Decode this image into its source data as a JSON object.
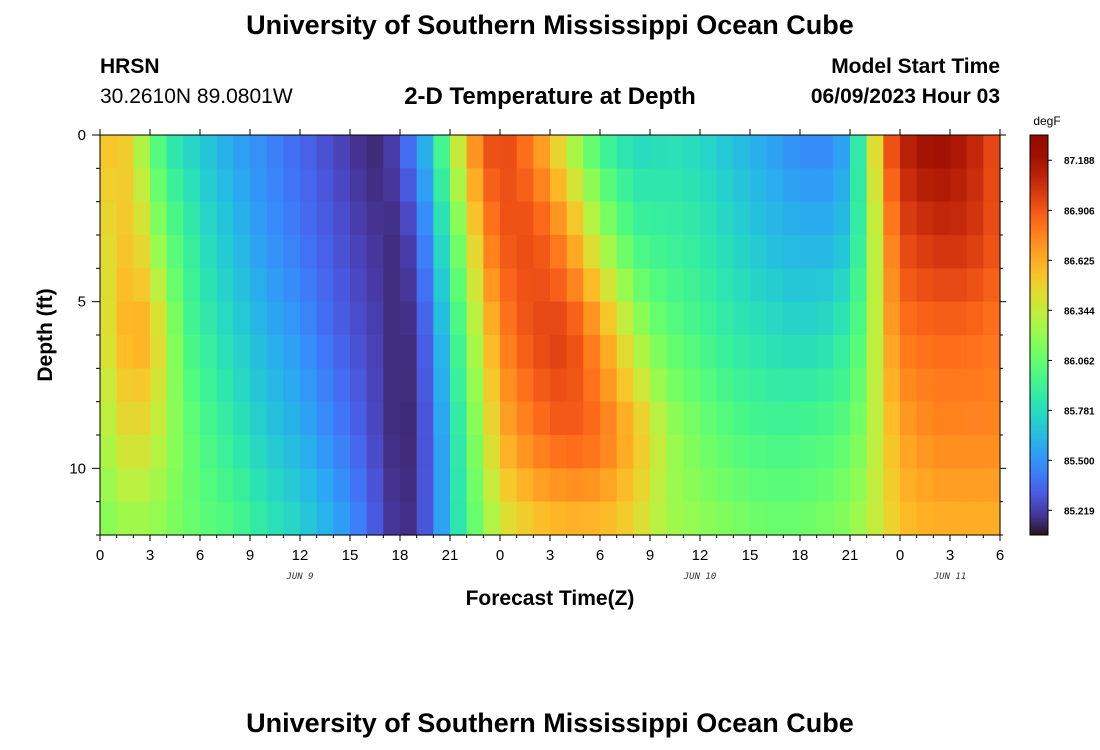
{
  "header": {
    "title": "University of Southern Mississippi Ocean Cube",
    "station": "HRSN",
    "coords": "30.2610N  89.0801W",
    "subtitle": "2-D Temperature at Depth",
    "model_start_label": "Model Start Time",
    "model_start_value": "06/09/2023 Hour 03"
  },
  "footer": {
    "title": "University of Southern Mississippi Ocean Cube"
  },
  "chart_data": {
    "type": "heatmap",
    "title": "2-D Temperature at Depth",
    "xlabel": "Forecast Time(Z)",
    "ylabel": "Depth (ft)",
    "x_unit": "hours since 06/09/2023 00Z",
    "xlim": [
      0,
      54
    ],
    "ylim": [
      0,
      12
    ],
    "y_inverted": true,
    "x_ticks": [
      0,
      3,
      6,
      9,
      12,
      15,
      18,
      21,
      24,
      27,
      30,
      33,
      36,
      39,
      42,
      45,
      48,
      51,
      54
    ],
    "x_tick_labels": [
      "0",
      "3",
      "6",
      "9",
      "12",
      "15",
      "18",
      "21",
      "0",
      "3",
      "6",
      "9",
      "12",
      "15",
      "18",
      "21",
      "0",
      "3",
      "6"
    ],
    "y_ticks": [
      0,
      5,
      10
    ],
    "y_tick_labels": [
      "0",
      "5",
      "10"
    ],
    "day_labels": [
      {
        "text": "JUN 9",
        "x": 12
      },
      {
        "text": "JUN 10",
        "x": 36
      },
      {
        "text": "JUN 11",
        "x": 51
      }
    ],
    "colorbar": {
      "unit": "degF",
      "min": 85.08,
      "max": 87.33,
      "tick_labels": [
        "87.188",
        "86.906",
        "86.625",
        "86.344",
        "86.062",
        "85.781",
        "85.500",
        "85.219"
      ],
      "tick_values": [
        87.188,
        86.906,
        86.625,
        86.344,
        86.062,
        85.781,
        85.5,
        85.219
      ],
      "colormap": "turbo"
    },
    "grid": {
      "time_step_hours": 1,
      "depth_step_ft": 1,
      "depth_levels": 12,
      "profile_depths_ft": [
        0,
        3,
        6,
        9,
        12
      ],
      "profile_times_hours": [
        0,
        1,
        2,
        3,
        4,
        5,
        6,
        8,
        10,
        12,
        14,
        16,
        17,
        18,
        19,
        20,
        21,
        22,
        23,
        24,
        26,
        28,
        30,
        32,
        33,
        34,
        36,
        38,
        40,
        42,
        44,
        45,
        46,
        47,
        48,
        50,
        52,
        54
      ],
      "profiles_degF": [
        [
          86.5,
          86.4,
          86.3,
          86.2,
          86.1
        ],
        [
          86.6,
          86.5,
          86.55,
          86.4,
          86.2
        ],
        [
          86.4,
          86.55,
          86.65,
          86.45,
          86.2
        ],
        [
          86.1,
          86.3,
          86.6,
          86.4,
          86.2
        ],
        [
          85.85,
          86.05,
          86.3,
          86.25,
          86.15
        ],
        [
          85.75,
          85.95,
          86.0,
          86.1,
          86.1
        ],
        [
          85.7,
          85.8,
          85.9,
          86.0,
          86.05
        ],
        [
          85.55,
          85.65,
          85.75,
          85.85,
          86.0
        ],
        [
          85.45,
          85.5,
          85.6,
          85.7,
          85.85
        ],
        [
          85.35,
          85.4,
          85.5,
          85.6,
          85.75
        ],
        [
          85.25,
          85.3,
          85.35,
          85.45,
          85.6
        ],
        [
          85.15,
          85.2,
          85.25,
          85.3,
          85.4
        ],
        [
          85.15,
          85.18,
          85.2,
          85.2,
          85.25
        ],
        [
          85.3,
          85.15,
          85.13,
          85.13,
          85.15
        ],
        [
          85.5,
          85.3,
          85.2,
          85.18,
          85.2
        ],
        [
          85.75,
          85.6,
          85.45,
          85.4,
          85.4
        ],
        [
          86.2,
          85.95,
          85.8,
          85.7,
          85.7
        ],
        [
          86.6,
          86.3,
          86.1,
          86.0,
          85.95
        ],
        [
          86.9,
          86.7,
          86.45,
          86.3,
          86.15
        ],
        [
          87.0,
          86.9,
          86.75,
          86.6,
          86.35
        ],
        [
          86.75,
          86.95,
          86.95,
          86.8,
          86.5
        ],
        [
          86.3,
          86.7,
          87.0,
          86.9,
          86.55
        ],
        [
          85.9,
          86.25,
          86.7,
          86.85,
          86.55
        ],
        [
          85.75,
          85.95,
          86.3,
          86.6,
          86.45
        ],
        [
          85.75,
          85.9,
          86.15,
          86.45,
          86.35
        ],
        [
          85.8,
          85.9,
          86.05,
          86.25,
          86.25
        ],
        [
          85.75,
          85.85,
          85.95,
          86.1,
          86.2
        ],
        [
          85.65,
          85.75,
          85.85,
          86.0,
          86.15
        ],
        [
          85.55,
          85.65,
          85.8,
          85.95,
          86.1
        ],
        [
          85.45,
          85.6,
          85.75,
          85.95,
          86.1
        ],
        [
          85.45,
          85.6,
          85.8,
          86.0,
          86.15
        ],
        [
          85.6,
          85.7,
          85.9,
          86.05,
          86.2
        ],
        [
          86.1,
          86.05,
          86.1,
          86.2,
          86.3
        ],
        [
          86.8,
          86.6,
          86.55,
          86.45,
          86.4
        ],
        [
          87.1,
          86.95,
          86.8,
          86.65,
          86.55
        ],
        [
          87.25,
          87.05,
          86.85,
          86.75,
          86.6
        ],
        [
          87.15,
          87.05,
          86.85,
          86.75,
          86.6
        ],
        [
          86.9,
          86.9,
          86.8,
          86.75,
          86.6
        ]
      ]
    }
  }
}
